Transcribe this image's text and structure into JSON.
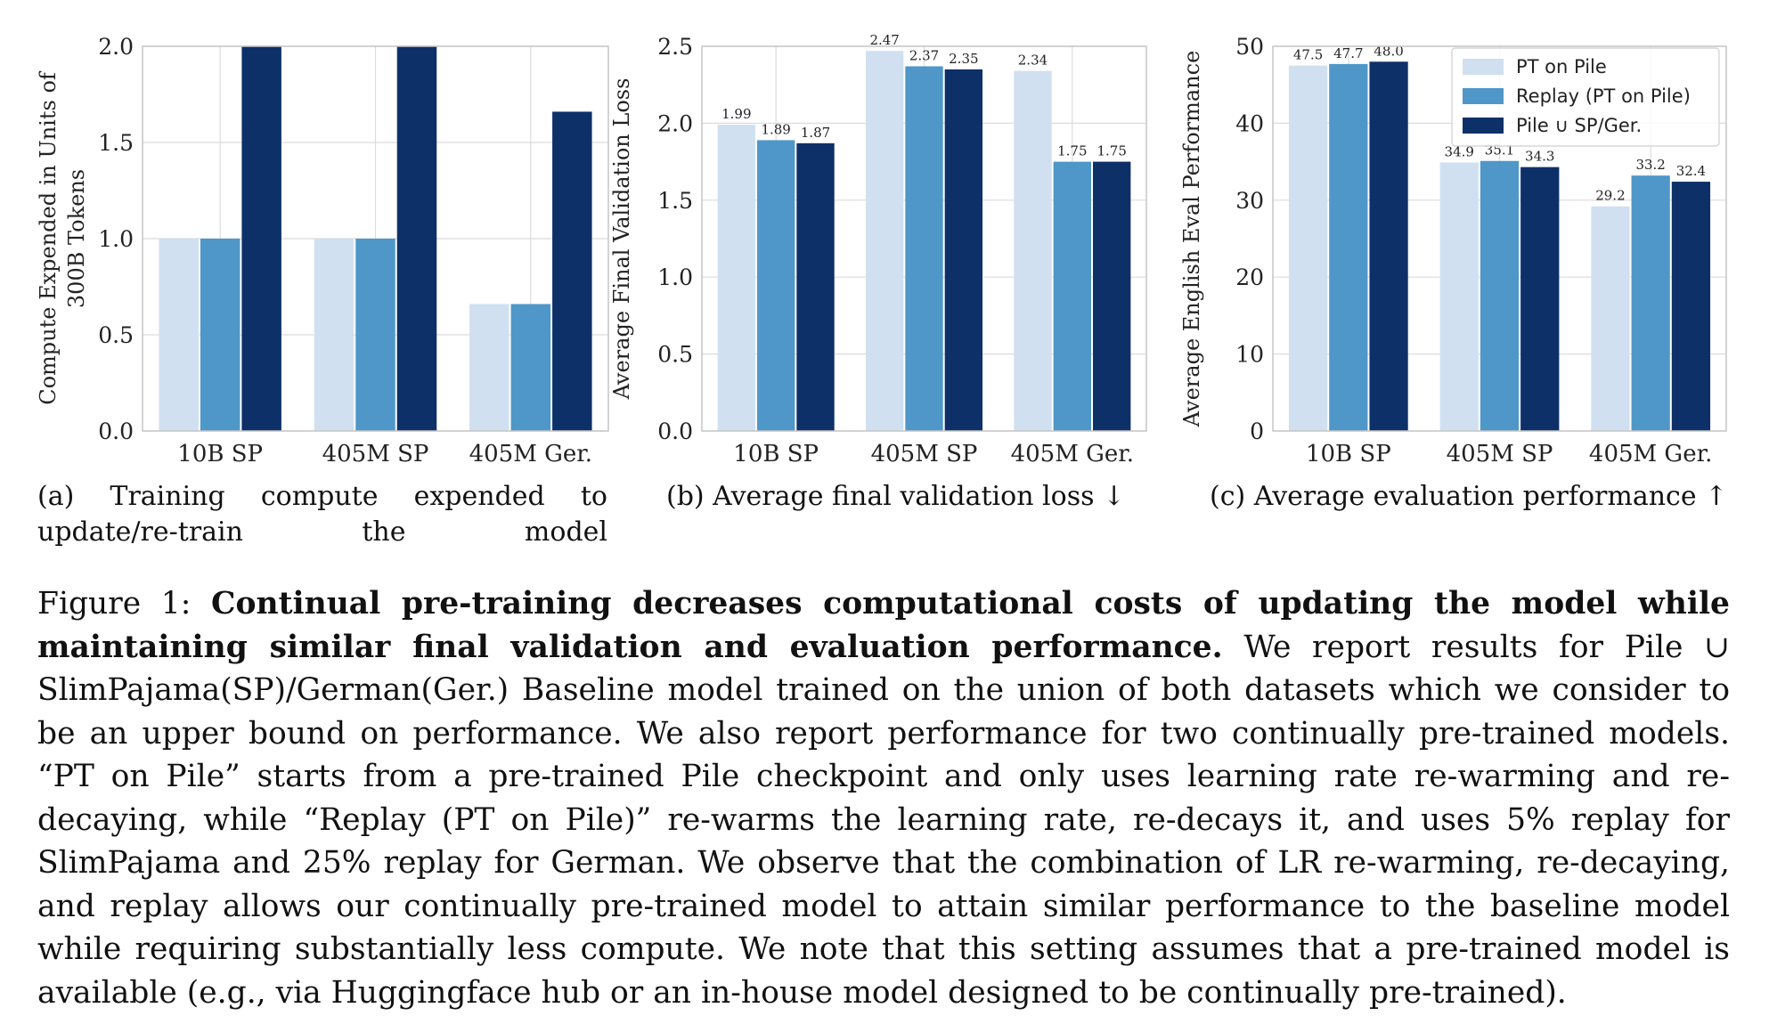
{
  "colors": {
    "pt_on_pile": "#d0e0f1",
    "replay": "#4f97c8",
    "joint": "#0e3068",
    "grid": "#dcdcdc",
    "axis": "#c6c6c6"
  },
  "chart_data": [
    {
      "id": "a",
      "type": "bar",
      "categories": [
        "10B SP",
        "405M SP",
        "405M Ger."
      ],
      "series": [
        {
          "name": "PT on Pile",
          "values": [
            1.0,
            1.0,
            0.66
          ]
        },
        {
          "name": "Replay (PT on Pile)",
          "values": [
            1.0,
            1.0,
            0.66
          ]
        },
        {
          "name": "Pile ∪ SP/Ger.",
          "values": [
            2.0,
            2.0,
            1.66
          ]
        }
      ],
      "ylabel_lines": [
        "Compute Expended in Units of",
        "300B Tokens"
      ],
      "ylim": [
        0,
        2.0
      ],
      "yticks": [
        "0.0",
        "0.5",
        "1.0",
        "1.5",
        "2.0"
      ],
      "show_value_labels": false,
      "grid": true,
      "legend": "none"
    },
    {
      "id": "b",
      "type": "bar",
      "categories": [
        "10B SP",
        "405M SP",
        "405M Ger."
      ],
      "series": [
        {
          "name": "PT on Pile",
          "values": [
            1.99,
            2.47,
            2.34
          ]
        },
        {
          "name": "Replay (PT on Pile)",
          "values": [
            1.89,
            2.37,
            1.75
          ]
        },
        {
          "name": "Pile ∪ SP/Ger.",
          "values": [
            1.87,
            2.35,
            1.75
          ]
        }
      ],
      "ylabel_lines": [
        "Average Final Validation Loss"
      ],
      "ylim": [
        0,
        2.5
      ],
      "yticks": [
        "0.0",
        "0.5",
        "1.0",
        "1.5",
        "2.0",
        "2.5"
      ],
      "show_value_labels": true,
      "grid": true,
      "legend": "none"
    },
    {
      "id": "c",
      "type": "bar",
      "categories": [
        "10B SP",
        "405M SP",
        "405M Ger."
      ],
      "series": [
        {
          "name": "PT on Pile",
          "values": [
            47.5,
            34.9,
            29.2
          ]
        },
        {
          "name": "Replay (PT on Pile)",
          "values": [
            47.7,
            35.1,
            33.2
          ]
        },
        {
          "name": "Pile ∪ SP/Ger.",
          "values": [
            48.0,
            34.3,
            32.4
          ]
        }
      ],
      "ylabel_lines": [
        "Average English Eval Performance"
      ],
      "ylim": [
        0,
        50
      ],
      "yticks": [
        "0",
        "10",
        "20",
        "30",
        "40",
        "50"
      ],
      "show_value_labels": true,
      "grid": true,
      "legend": "top-right"
    }
  ],
  "subcaptions": {
    "a": "(a) Training compute expended to update/re-train the model",
    "b": "(b) Average final validation loss ↓",
    "c": "(c) Average evaluation performance ↑"
  },
  "caption": {
    "label": "Figure 1:",
    "bold": "Continual pre-training decreases computational costs of updating the model while maintaining similar final validation and evaluation performance.",
    "body": "We report results for Pile ∪ SlimPajama(SP)/German(Ger.) Baseline model trained on the union of both datasets which we consider to be an upper bound on performance. We also report performance for two continually pre-trained models. “PT on Pile” starts from a pre-trained Pile checkpoint and only uses learning rate re-warming and re-decaying, while “Replay (PT on Pile)” re-warms the learning rate, re-decays it, and uses 5% replay for SlimPajama and 25% replay for German. We observe that the combination of LR re-warming, re-decaying, and replay allows our continually pre-trained model to attain similar performance to the baseline model while requiring substantially less compute. We note that this setting assumes that a pre-trained model is available (e.g., via Huggingface hub or an in-house model designed to be continually pre-trained)."
  }
}
